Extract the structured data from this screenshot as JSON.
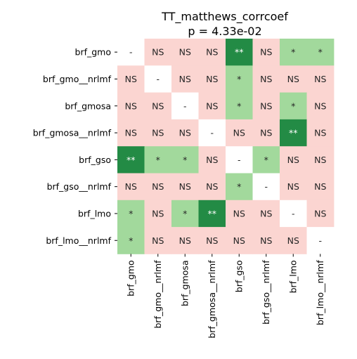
{
  "chart_data": {
    "type": "heatmap",
    "title": "TT_matthews_corrcoef",
    "subtitle": "p = 4.33e-02",
    "row_labels": [
      "brf_gmo",
      "brf_gmo__nrlmf",
      "brf_gmosa",
      "brf_gmosa__nrlmf",
      "brf_gso",
      "brf_gso__nrlmf",
      "brf_lmo",
      "brf_lmo__nrlmf"
    ],
    "col_labels": [
      "brf_gmo",
      "brf_gmo__nrlmf",
      "brf_gmosa",
      "brf_gmosa__nrlmf",
      "brf_gso",
      "brf_gso__nrlmf",
      "brf_lmo",
      "brf_lmo__nrlmf"
    ],
    "cells": [
      [
        "-",
        "NS",
        "NS",
        "NS",
        "**",
        "NS",
        "*",
        "*"
      ],
      [
        "NS",
        "-",
        "NS",
        "NS",
        "*",
        "NS",
        "NS",
        "NS"
      ],
      [
        "NS",
        "NS",
        "-",
        "NS",
        "*",
        "NS",
        "*",
        "NS"
      ],
      [
        "NS",
        "NS",
        "NS",
        "-",
        "NS",
        "NS",
        "**",
        "NS"
      ],
      [
        "**",
        "*",
        "*",
        "NS",
        "-",
        "*",
        "NS",
        "NS"
      ],
      [
        "NS",
        "NS",
        "NS",
        "NS",
        "*",
        "-",
        "NS",
        "NS"
      ],
      [
        "*",
        "NS",
        "*",
        "**",
        "NS",
        "NS",
        "-",
        "NS"
      ],
      [
        "*",
        "NS",
        "NS",
        "NS",
        "NS",
        "NS",
        "NS",
        "-"
      ]
    ],
    "colors": {
      "NS": "#fbd5d1",
      "*": "#a2d99c",
      "**": "#238b45",
      "-": "#ffffff"
    },
    "text_colors": {
      "NS": "#262626",
      "*": "#262626",
      "**": "#ffffff",
      "-": "#262626"
    },
    "grid": false
  }
}
